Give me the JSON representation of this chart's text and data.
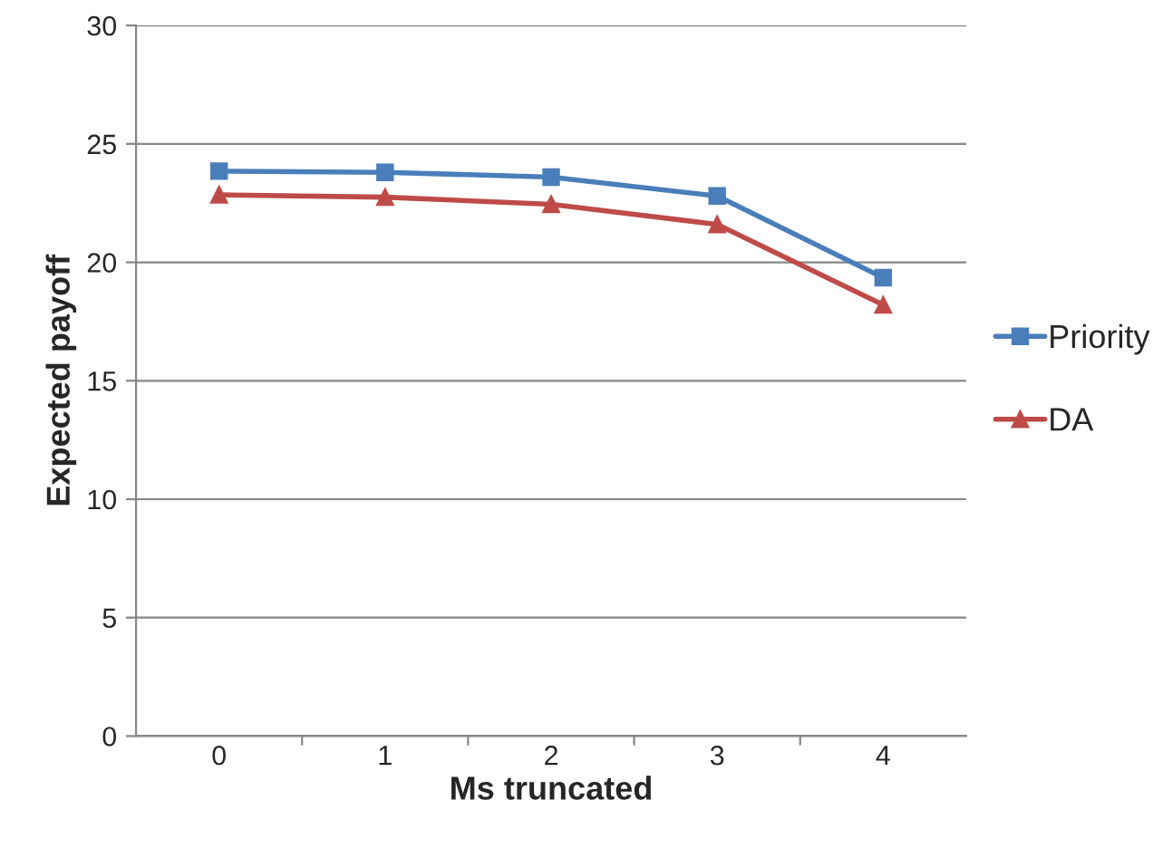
{
  "chart_data": {
    "type": "line",
    "xlabel": "Ms truncated",
    "ylabel": "Expected payoff",
    "categories": [
      "0",
      "1",
      "2",
      "3",
      "4"
    ],
    "series": [
      {
        "name": "Priority",
        "color": "#4a7ebb",
        "marker": "square",
        "values": [
          23.85,
          23.8,
          23.6,
          22.8,
          19.35
        ]
      },
      {
        "name": "DA",
        "color": "#be4b48",
        "marker": "triangle",
        "values": [
          22.85,
          22.75,
          22.45,
          21.6,
          18.2
        ]
      }
    ],
    "ylim": [
      0,
      30
    ],
    "yticks": [
      0,
      5,
      10,
      15,
      20,
      25,
      30
    ],
    "grid": "y",
    "legend": "right",
    "line_style": "solid"
  }
}
